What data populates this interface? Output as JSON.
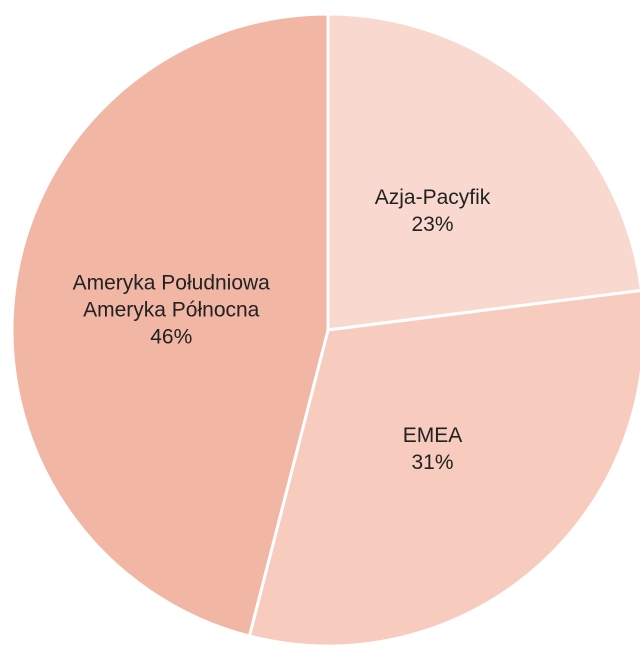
{
  "chart_data": {
    "type": "pie",
    "categories": [
      "Azja-Pacyfik",
      "EMEA",
      "Ameryka Południowa\nAmeryka Północna"
    ],
    "values": [
      23,
      31,
      46
    ],
    "value_labels": [
      "23%",
      "31%",
      "46%"
    ],
    "colors": [
      "#f9d9cf",
      "#f7cbbd",
      "#f2b6a5"
    ]
  }
}
